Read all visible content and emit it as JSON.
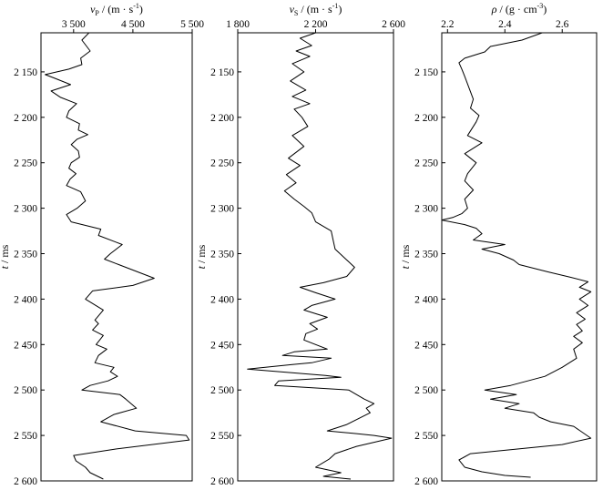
{
  "chart_data": [
    {
      "type": "line",
      "orientation": "vertical",
      "title": "",
      "xlabel": "vP / (m · s-1)",
      "xlabel_parts": {
        "symbol": "v",
        "sub": "P",
        "unit_pre": " / (m · s",
        "unit_sup": "-1",
        "unit_post": ")"
      },
      "ylabel": "t / ms",
      "ylabel_parts": {
        "symbol": "t",
        "unit": " / ms"
      },
      "xlim": [
        2950,
        5500
      ],
      "ylim": [
        2600,
        2107
      ],
      "xticks": [
        3500,
        4500,
        5500
      ],
      "xtick_labels": [
        "3 500",
        "4 500",
        "5 500"
      ],
      "yticks": [
        2150,
        2200,
        2250,
        2300,
        2350,
        2400,
        2450,
        2500,
        2550,
        2600
      ],
      "ytick_labels": [
        "2 150",
        "2 200",
        "2 250",
        "2 300",
        "2 350",
        "2 400",
        "2 450",
        "2 500",
        "2 550",
        "2 600"
      ],
      "series": [
        {
          "x": [
            3760,
            3640,
            3780,
            3620,
            3640,
            3420,
            3020,
            3180,
            3450,
            3120,
            3280,
            3550,
            3420,
            3380,
            3600,
            3580,
            3740,
            3560,
            3460,
            3580,
            3600,
            3460,
            3420,
            3540,
            3440,
            3380,
            3620,
            3700,
            3560,
            3380,
            3460,
            3960,
            3920,
            4320,
            4120,
            4020,
            4260,
            4860,
            4500,
            3820,
            3700,
            4000,
            3860,
            3920,
            3820,
            4000,
            3880,
            4060,
            3920,
            3860,
            4180,
            4120,
            4240,
            4080,
            3780,
            3640,
            4280,
            4380,
            4560,
            4180,
            3960,
            4540,
            5400,
            5450,
            4200,
            3500,
            3540,
            3700,
            3780,
            4000
          ],
          "y": [
            2107,
            2115,
            2127,
            2135,
            2142,
            2147,
            2153,
            2157,
            2164,
            2171,
            2178,
            2185,
            2193,
            2200,
            2207,
            2214,
            2219,
            2224,
            2230,
            2237,
            2244,
            2250,
            2256,
            2262,
            2268,
            2275,
            2282,
            2292,
            2300,
            2307,
            2315,
            2323,
            2330,
            2340,
            2350,
            2356,
            2362,
            2377,
            2385,
            2391,
            2400,
            2412,
            2423,
            2427,
            2434,
            2440,
            2450,
            2455,
            2462,
            2470,
            2475,
            2480,
            2485,
            2490,
            2495,
            2500,
            2505,
            2510,
            2520,
            2527,
            2535,
            2545,
            2550,
            2555,
            2565,
            2572,
            2578,
            2585,
            2591,
            2598
          ]
        }
      ]
    },
    {
      "type": "line",
      "orientation": "vertical",
      "title": "",
      "xlabel": "vS / (m · s-1)",
      "xlabel_parts": {
        "symbol": "v",
        "sub": "S",
        "unit_pre": " / (m · s",
        "unit_sup": "-1",
        "unit_post": ")"
      },
      "ylabel": "t / ms",
      "ylabel_parts": {
        "symbol": "t",
        "unit": " / ms"
      },
      "xlim": [
        1800,
        2600
      ],
      "ylim": [
        2600,
        2107
      ],
      "xticks": [
        1800,
        2200,
        2600
      ],
      "xtick_labels": [
        "1 800",
        "2 200",
        "2 600"
      ],
      "yticks": [
        2150,
        2200,
        2250,
        2300,
        2350,
        2400,
        2450,
        2500,
        2550,
        2600
      ],
      "ytick_labels": [
        "2 150",
        "2 200",
        "2 250",
        "2 300",
        "2 350",
        "2 400",
        "2 450",
        "2 500",
        "2 550",
        "2 600"
      ],
      "series": [
        {
          "x": [
            2200,
            2120,
            2180,
            2100,
            2170,
            2080,
            2140,
            2070,
            2150,
            2080,
            2170,
            2090,
            2130,
            2160,
            2080,
            2140,
            2060,
            2120,
            2050,
            2100,
            2040,
            2090,
            2140,
            2180,
            2190,
            2200,
            2280,
            2290,
            2300,
            2400,
            2360,
            2240,
            2120,
            2200,
            2300,
            2180,
            2140,
            2260,
            2170,
            2210,
            2150,
            2140,
            2260,
            2090,
            2030,
            2280,
            2180,
            2080,
            1850,
            2250,
            2330,
            2010,
            1990,
            2370,
            2450,
            2500,
            2460,
            2480,
            2360,
            2260,
            2410,
            2500,
            2590,
            2410,
            2300,
            2270,
            2200,
            2330,
            2240,
            2380
          ],
          "y": [
            2107,
            2113,
            2121,
            2127,
            2133,
            2141,
            2150,
            2160,
            2170,
            2177,
            2185,
            2191,
            2200,
            2210,
            2220,
            2232,
            2245,
            2253,
            2263,
            2272,
            2281,
            2290,
            2298,
            2305,
            2310,
            2315,
            2325,
            2335,
            2345,
            2365,
            2375,
            2382,
            2387,
            2393,
            2400,
            2407,
            2412,
            2420,
            2427,
            2433,
            2438,
            2445,
            2455,
            2458,
            2462,
            2465,
            2470,
            2472,
            2477,
            2484,
            2486,
            2490,
            2495,
            2500,
            2510,
            2515,
            2520,
            2525,
            2538,
            2545,
            2548,
            2550,
            2553,
            2562,
            2570,
            2576,
            2585,
            2591,
            2595,
            2598
          ]
        }
      ]
    },
    {
      "type": "line",
      "orientation": "vertical",
      "title": "",
      "xlabel": "ρ / (g · cm-3)",
      "xlabel_parts": {
        "symbol": "ρ",
        "sub": "",
        "unit_pre": " / (g · cm",
        "unit_sup": "-3",
        "unit_post": ")"
      },
      "ylabel": "t / ms",
      "ylabel_parts": {
        "symbol": "t",
        "unit": " / ms"
      },
      "xlim": [
        2180,
        2720
      ],
      "ylim": [
        2600,
        2107
      ],
      "xticks": [
        2200,
        2400,
        2600
      ],
      "xtick_labels": [
        "2.2",
        "2.4",
        "2.6"
      ],
      "yticks": [
        2150,
        2200,
        2250,
        2300,
        2350,
        2400,
        2450,
        2500,
        2550,
        2600
      ],
      "ytick_labels": [
        "2 150",
        "2 200",
        "2 250",
        "2 300",
        "2 350",
        "2 400",
        "2 450",
        "2 500",
        "2 550",
        "2 600"
      ],
      "series": [
        {
          "x": [
            2530,
            2460,
            2350,
            2330,
            2260,
            2240,
            2250,
            2260,
            2290,
            2280,
            2310,
            2300,
            2270,
            2320,
            2260,
            2300,
            2270,
            2260,
            2290,
            2260,
            2270,
            2250,
            2220,
            2180,
            2260,
            2300,
            2320,
            2290,
            2400,
            2320,
            2380,
            2430,
            2450,
            2550,
            2630,
            2690,
            2660,
            2700,
            2660,
            2690,
            2650,
            2680,
            2650,
            2670,
            2640,
            2670,
            2640,
            2650,
            2600,
            2540,
            2420,
            2330,
            2440,
            2350,
            2450,
            2400,
            2500,
            2520,
            2560,
            2640,
            2700,
            2600,
            2280,
            2240,
            2260,
            2320,
            2400,
            2490
          ],
          "y": [
            2107,
            2115,
            2122,
            2128,
            2135,
            2140,
            2147,
            2155,
            2180,
            2190,
            2198,
            2205,
            2220,
            2228,
            2240,
            2250,
            2262,
            2270,
            2280,
            2290,
            2300,
            2306,
            2310,
            2313,
            2318,
            2322,
            2328,
            2335,
            2340,
            2345,
            2350,
            2357,
            2362,
            2370,
            2376,
            2381,
            2387,
            2392,
            2400,
            2407,
            2415,
            2422,
            2428,
            2435,
            2441,
            2448,
            2455,
            2465,
            2475,
            2485,
            2495,
            2500,
            2505,
            2510,
            2515,
            2520,
            2525,
            2530,
            2535,
            2540,
            2553,
            2560,
            2570,
            2577,
            2585,
            2590,
            2594,
            2596
          ]
        }
      ]
    }
  ]
}
